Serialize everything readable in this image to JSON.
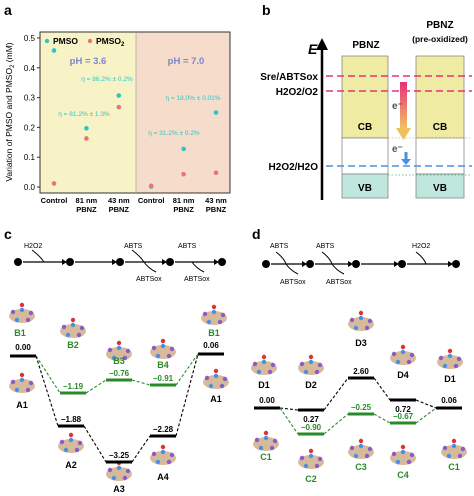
{
  "panels": {
    "a": "a",
    "b": "b",
    "c": "c",
    "d": "d"
  },
  "panel_a": {
    "ylabel": "Variation of PMSO and PMSO",
    "ylabel_sub": "2",
    "ylabel_tail": " (mM)",
    "legend": [
      "PMSO",
      "PMSO"
    ],
    "legend_sub": "2",
    "region_labels": [
      "pH = 3.6",
      "pH = 7.0"
    ],
    "region_colors": [
      "#f7f3c6",
      "#f6dccb"
    ],
    "categories": [
      "Control",
      "81 nm\nPBNZ",
      "43 nm\nPBNZ",
      "Control",
      "81 nm\nPBNZ",
      "43 nm\nPBNZ"
    ],
    "yticks": [
      "0.0",
      "0.1",
      "0.2",
      "0.3",
      "0.4",
      "0.5"
    ],
    "annotations": [
      "η = 86.2% ± 0.2%",
      "η = 81.2% ± 1.3%",
      "η = 18.0% ± 0.01%",
      "η = 31.2% ± 0.2%"
    ],
    "colors": {
      "pmso": "#2ec4c4",
      "pmso2": "#e8737a"
    }
  },
  "chart_data": {
    "type": "scatter",
    "categories": [
      "Control",
      "81 nm PBNZ",
      "43 nm PBNZ",
      "Control",
      "81 nm PBNZ",
      "43 nm PBNZ"
    ],
    "ylabel": "Variation of PMSO and PMSO2 (mM)",
    "ylim": [
      -0.02,
      0.52
    ],
    "series": [
      {
        "name": "PMSO",
        "values": [
          0.458,
          0.197,
          0.307,
          0.002,
          0.128,
          0.25
        ]
      },
      {
        "name": "PMSO2",
        "values": [
          0.012,
          0.163,
          0.268,
          0.004,
          0.043,
          0.048
        ]
      }
    ]
  },
  "panel_b": {
    "axis_label": "E",
    "cols": [
      "PBNZ",
      "PBNZ"
    ],
    "col2_sub": "(pre-oxidized)",
    "levels": [
      "ABTS",
      "re",
      "/ABTS",
      "ox",
      "H",
      "2",
      "O",
      "2",
      "/O",
      "2"
    ],
    "level_abts": "ABTSre/ABTSox",
    "level_h2o2_o2": "H2O2/O2",
    "level_h2o2_h2o": "H2O2/H2O",
    "cb": "CB",
    "vb": "VB",
    "electron": "e⁻"
  },
  "panel_c": {
    "scheme_top": [
      "H2O2",
      "ABTS",
      "ABTSox",
      "ABTS",
      "ABTSox"
    ],
    "energies": [
      "0.00",
      "−1.19",
      "−0.76",
      "−0.91",
      "0.06",
      "−1.88",
      "−3.25",
      "−2.28"
    ],
    "labels_green": [
      "B1",
      "B2",
      "B3",
      "B4",
      "B1"
    ],
    "labels_black": [
      "A1",
      "A2",
      "A3",
      "A4",
      "A1"
    ]
  },
  "panel_d": {
    "scheme_top": [
      "ABTS",
      "ABTSox",
      "ABTS",
      "ABTSox",
      "H2O2"
    ],
    "energies": [
      "2.60",
      "0.72",
      "0.00",
      "0.27",
      "−0.25",
      "−0.67",
      "0.06",
      "−0.90"
    ],
    "labels_black": [
      "D1",
      "D2",
      "D3",
      "D4",
      "D1"
    ],
    "labels_green": [
      "C1",
      "C2",
      "C3",
      "C4",
      "C1"
    ]
  }
}
